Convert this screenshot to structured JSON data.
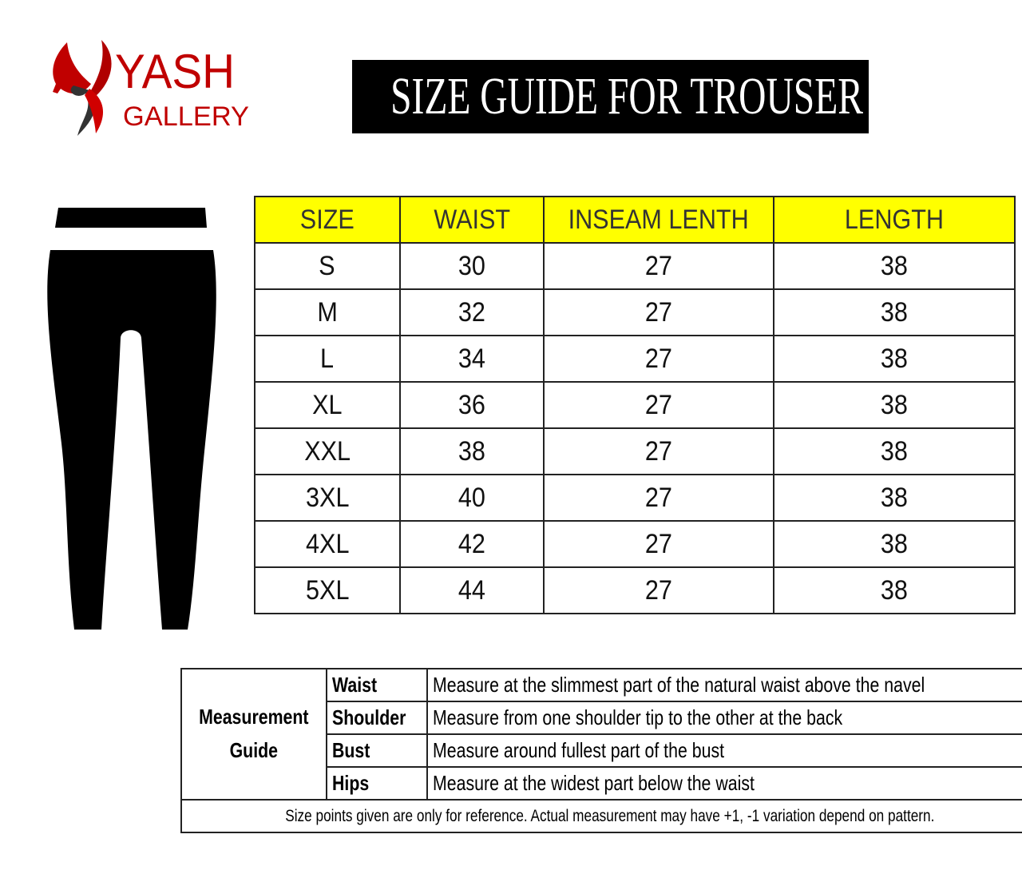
{
  "brand": {
    "line1": "YASH",
    "line2": "GALLERY",
    "colors": {
      "red": "#d00000",
      "dark": "#333333"
    }
  },
  "title": "SIZE GUIDE FOR TROUSER",
  "size_table": {
    "header_color": "#ffff00",
    "headers": [
      "SIZE",
      "WAIST",
      "INSEAM LENTH",
      "LENGTH"
    ],
    "rows": [
      [
        "S",
        "30",
        "27",
        "38"
      ],
      [
        "M",
        "32",
        "27",
        "38"
      ],
      [
        "L",
        "34",
        "27",
        "38"
      ],
      [
        "XL",
        "36",
        "27",
        "38"
      ],
      [
        "XXL",
        "38",
        "27",
        "38"
      ],
      [
        "3XL",
        "40",
        "27",
        "38"
      ],
      [
        "4XL",
        "42",
        "27",
        "38"
      ],
      [
        "5XL",
        "44",
        "27",
        "38"
      ]
    ]
  },
  "guide": {
    "heading": "Measurement Guide",
    "items": [
      {
        "label": "Waist",
        "text": "Measure at the slimmest part of the natural waist above the navel"
      },
      {
        "label": "Shoulder",
        "text": "Measure from one shoulder tip to the other at the back"
      },
      {
        "label": "Bust",
        "text": "Measure around fullest part of the bust"
      },
      {
        "label": "Hips",
        "text": "Measure at the widest part below the waist"
      }
    ],
    "note": "Size points given are only for reference. Actual measurement may have +1, -1 variation depend on pattern."
  }
}
